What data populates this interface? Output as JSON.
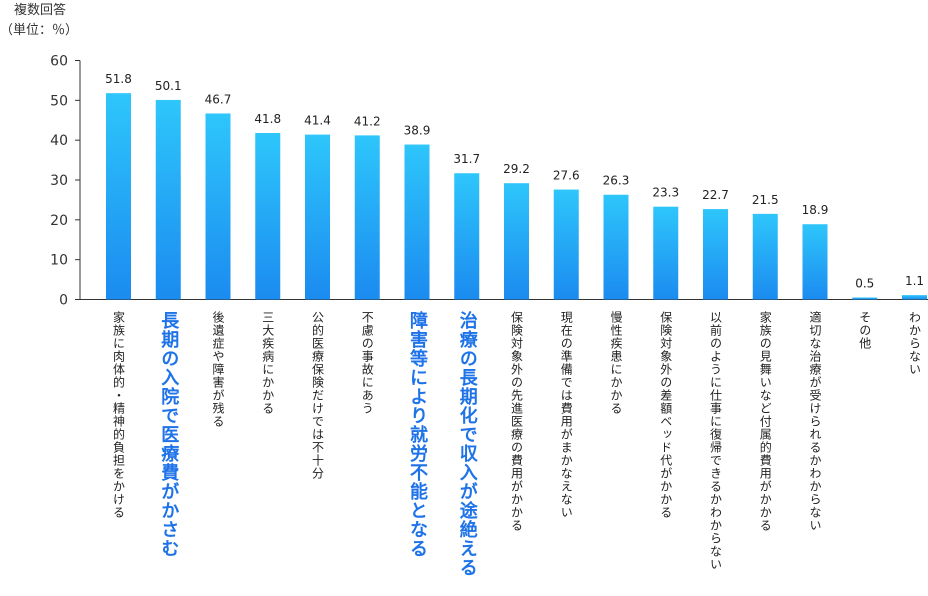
{
  "chart_data": {
    "type": "bar",
    "unit_label_line1": "複数回答",
    "unit_label_line2": "（単位：％）",
    "ylim": [
      0,
      60
    ],
    "yticks": [
      0,
      10,
      20,
      30,
      40,
      50,
      60
    ],
    "grid": false,
    "categories": [
      "家族に肉体的・精神的負担をかける",
      "長期の入院で医療費がかさむ",
      "後遺症や障害が残る",
      "三大疾病にかかる",
      "公的医療保険だけでは不十分",
      "不慮の事故にあう",
      "障害等により就労不能となる",
      "治療の長期化で収入が途絶える",
      "保険対象外の先進医療の費用がかかる",
      "現在の準備では費用がまかなえない",
      "慢性疾患にかかる",
      "保険対象外の差額ベッド代がかかる",
      "以前のように仕事に復帰できるかわからない",
      "家族の見舞いなど付属的費用がかかる",
      "適切な治療が受けられるかわからない",
      "その他",
      "わからない"
    ],
    "values": [
      51.8,
      50.1,
      46.7,
      41.8,
      41.4,
      41.2,
      38.9,
      31.7,
      29.2,
      27.6,
      26.3,
      23.3,
      22.7,
      21.5,
      18.9,
      0.5,
      1.1
    ],
    "value_labels": [
      "51.8",
      "50.1",
      "46.7",
      "41.8",
      "41.4",
      "41.2",
      "38.9",
      "31.7",
      "29.2",
      "27.6",
      "26.3",
      "23.3",
      "22.7",
      "21.5",
      "18.9",
      "0.5",
      "1.1"
    ],
    "highlighted": [
      false,
      true,
      false,
      false,
      false,
      false,
      true,
      true,
      false,
      false,
      false,
      false,
      false,
      false,
      false,
      false,
      false
    ],
    "colors": {
      "bar_top": "#2ec6fb",
      "bar_bottom": "#1b8bf0",
      "highlight_text": "#1f73e8",
      "axis": "#333333"
    }
  }
}
